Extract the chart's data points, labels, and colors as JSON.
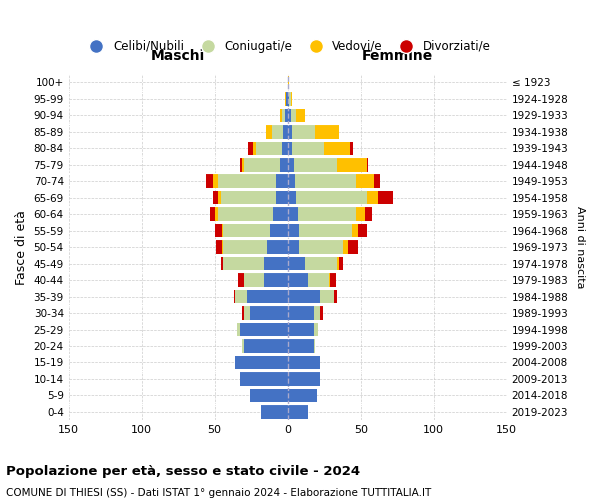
{
  "age_groups": [
    "0-4",
    "5-9",
    "10-14",
    "15-19",
    "20-24",
    "25-29",
    "30-34",
    "35-39",
    "40-44",
    "45-49",
    "50-54",
    "55-59",
    "60-64",
    "65-69",
    "70-74",
    "75-79",
    "80-84",
    "85-89",
    "90-94",
    "95-99",
    "100+"
  ],
  "birth_years": [
    "2019-2023",
    "2014-2018",
    "2009-2013",
    "2004-2008",
    "1999-2003",
    "1994-1998",
    "1989-1993",
    "1984-1988",
    "1979-1983",
    "1974-1978",
    "1969-1973",
    "1964-1968",
    "1959-1963",
    "1954-1958",
    "1949-1953",
    "1944-1948",
    "1939-1943",
    "1934-1938",
    "1929-1933",
    "1924-1928",
    "≤ 1923"
  ],
  "males": {
    "celibe": [
      18,
      26,
      33,
      36,
      30,
      33,
      26,
      28,
      16,
      16,
      14,
      12,
      10,
      8,
      8,
      5,
      4,
      3,
      2,
      1,
      0
    ],
    "coniugato": [
      0,
      0,
      0,
      0,
      1,
      2,
      4,
      8,
      14,
      28,
      30,
      32,
      38,
      38,
      40,
      25,
      18,
      8,
      2,
      0,
      0
    ],
    "vedovo": [
      0,
      0,
      0,
      0,
      0,
      0,
      0,
      0,
      0,
      0,
      1,
      1,
      2,
      2,
      3,
      1,
      2,
      4,
      1,
      1,
      0
    ],
    "divorziato": [
      0,
      0,
      0,
      0,
      0,
      0,
      1,
      1,
      4,
      2,
      4,
      5,
      3,
      3,
      5,
      2,
      3,
      0,
      0,
      0,
      0
    ]
  },
  "females": {
    "nubile": [
      14,
      20,
      22,
      22,
      18,
      18,
      18,
      22,
      14,
      12,
      8,
      8,
      7,
      6,
      5,
      4,
      3,
      3,
      2,
      1,
      0
    ],
    "coniugata": [
      0,
      0,
      0,
      0,
      1,
      3,
      4,
      10,
      14,
      22,
      30,
      36,
      40,
      48,
      42,
      30,
      22,
      16,
      4,
      1,
      0
    ],
    "vedova": [
      0,
      0,
      0,
      0,
      0,
      0,
      0,
      0,
      1,
      1,
      3,
      4,
      6,
      8,
      12,
      20,
      18,
      16,
      6,
      1,
      1
    ],
    "divorziata": [
      0,
      0,
      0,
      0,
      0,
      0,
      2,
      2,
      4,
      3,
      7,
      6,
      5,
      10,
      4,
      1,
      2,
      0,
      0,
      0,
      0
    ]
  },
  "colors": {
    "celibe": "#4472c4",
    "coniugato": "#c5d9a0",
    "vedovo": "#ffc000",
    "divorziato": "#cc0000"
  },
  "xlim": 150,
  "title": "Popolazione per età, sesso e stato civile - 2024",
  "subtitle": "COMUNE DI THIESI (SS) - Dati ISTAT 1° gennaio 2024 - Elaborazione TUTTITALIA.IT",
  "ylabel": "Fasce di età",
  "ylabel_right": "Anni di nascita",
  "xlabel_left": "Maschi",
  "xlabel_right": "Femmine",
  "bg_color": "#ffffff",
  "grid_color": "#cccccc",
  "legend_items": [
    "Celibi/Nubili",
    "Coniugati/e",
    "Vedovi/e",
    "Divorziati/e"
  ]
}
